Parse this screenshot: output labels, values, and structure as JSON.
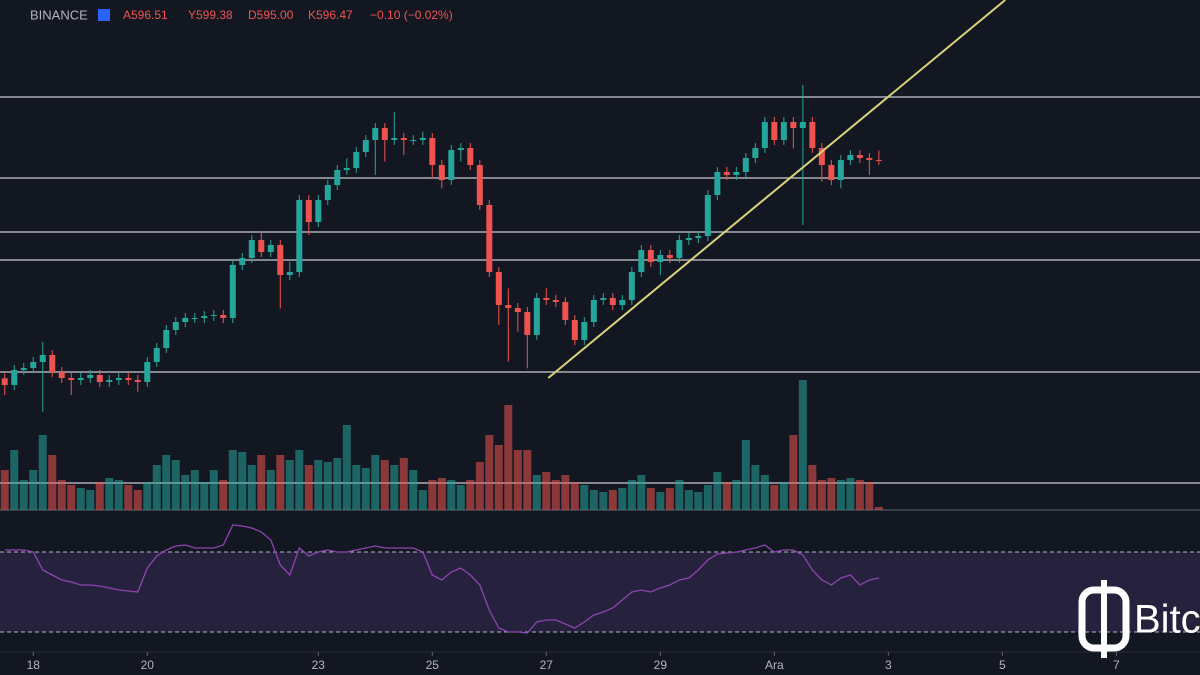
{
  "chart_data": {
    "type": "candlestick",
    "header": {
      "exchange": "BINANCE",
      "open": "A596.51",
      "high": "Y599.38",
      "low": "D595.00",
      "close": "K596.47",
      "change": "−0.10 (−0.02%)"
    },
    "open": [
      531,
      529,
      533.5,
      534.1,
      535.9,
      538,
      532.9,
      531.1,
      530.5,
      531.1,
      532,
      529.9,
      530.5,
      531.1,
      530.5,
      529.9,
      535.9,
      540.1,
      545.5,
      547.9,
      549.1,
      549.1,
      549.7,
      550,
      549.1,
      565,
      567.1,
      572.5,
      568.9,
      571,
      562,
      562.9,
      584.5,
      577.9,
      584.5,
      589,
      593.5,
      594.1,
      598.9,
      602.5,
      606.1,
      602.5,
      603.1,
      602.5,
      602.5,
      603.1,
      595,
      590.5,
      599.5,
      600.1,
      595,
      583,
      562.9,
      553,
      552.1,
      550.9,
      544,
      555.1,
      554.5,
      553.9,
      548.5,
      542.5,
      547.9,
      554.5,
      555.1,
      553,
      554.5,
      562.9,
      569.5,
      565.9,
      568,
      567.1,
      572.5,
      573.1,
      573.7,
      586,
      592.9,
      592,
      592.9,
      597.1,
      600.1,
      607.9,
      602.5,
      607.9,
      606.1,
      607.9,
      600.1,
      595,
      590.5,
      596.5,
      598,
      597.1,
      596.51
    ],
    "high": [
      532.5,
      535,
      535.6,
      537.4,
      541.9,
      539.5,
      534.4,
      532.6,
      532.6,
      533.5,
      533.5,
      532,
      532.6,
      532.6,
      532,
      537.4,
      541.6,
      547,
      549.4,
      550.6,
      550.6,
      551.2,
      551.5,
      551.5,
      566.5,
      568.6,
      574,
      575,
      572.5,
      572.5,
      566,
      586,
      586,
      586,
      590.5,
      595,
      597,
      600.4,
      604,
      607.6,
      607.6,
      611,
      604.6,
      604,
      605,
      604.6,
      596.5,
      601,
      601.6,
      601.6,
      596.5,
      584.5,
      564.4,
      558,
      553.6,
      552.4,
      556.6,
      558,
      556,
      555.4,
      550,
      549.4,
      556,
      556.6,
      556.6,
      556,
      564.4,
      571,
      571,
      569.5,
      569.5,
      574,
      574.6,
      575.2,
      587.5,
      594.4,
      594.4,
      594.4,
      598.6,
      601.6,
      609.4,
      609.4,
      609.4,
      609.4,
      619,
      609.4,
      601.6,
      596.5,
      598,
      599.5,
      599.5,
      598.6,
      599.38
    ],
    "low": [
      526,
      527.5,
      532,
      532.6,
      521,
      531.4,
      529.6,
      526,
      529,
      529.6,
      528.4,
      528.4,
      529,
      529,
      527,
      528.4,
      534.4,
      538.6,
      544,
      546.4,
      547.6,
      547.6,
      548.2,
      547.6,
      547.6,
      563.5,
      565.6,
      567.4,
      567.4,
      552,
      560.5,
      561.4,
      574,
      576.4,
      583,
      587.5,
      592,
      592.6,
      597.4,
      592,
      596,
      601,
      598,
      601,
      601,
      591,
      588,
      589,
      596,
      593.5,
      581.5,
      561.4,
      547,
      536,
      545,
      534,
      542.5,
      553,
      552.4,
      547,
      541,
      541,
      546.4,
      553,
      551.5,
      551.5,
      553,
      561.4,
      564.4,
      562,
      565.6,
      565.6,
      571,
      571.6,
      572.2,
      584.5,
      590.5,
      590.5,
      591.4,
      595.6,
      598.6,
      601,
      601,
      600,
      577,
      598.6,
      590,
      589,
      588,
      595,
      595.6,
      592,
      595
    ],
    "close": [
      529,
      533.5,
      534.1,
      535.9,
      538,
      532.9,
      531.1,
      530.5,
      531.1,
      532,
      529.9,
      530.5,
      531.1,
      530.5,
      529.9,
      535.9,
      540.1,
      545.5,
      547.9,
      549.1,
      549.1,
      549.7,
      550,
      549.1,
      565,
      567.1,
      572.5,
      568.9,
      571,
      562,
      562.9,
      584.5,
      577.9,
      584.5,
      589,
      593.5,
      594.1,
      598.9,
      602.5,
      606.1,
      602.5,
      603.1,
      602.5,
      602.5,
      603.1,
      595,
      590.5,
      599.5,
      600.1,
      595,
      583,
      562.9,
      553,
      552.1,
      550.9,
      544,
      555.1,
      554.5,
      553.9,
      548.5,
      542.5,
      547.9,
      554.5,
      555.1,
      553,
      554.5,
      562.9,
      569.5,
      565.9,
      568,
      567.1,
      572.5,
      573.1,
      573.7,
      586,
      592.9,
      592,
      592.9,
      597.1,
      600.1,
      607.9,
      602.5,
      607.9,
      606.1,
      607.9,
      600.1,
      595,
      590.5,
      596.5,
      598,
      597.1,
      596.51,
      596.47
    ],
    "volume": [
      40,
      60,
      30,
      40,
      75,
      55,
      30,
      25,
      22,
      20,
      28,
      32,
      30,
      25,
      20,
      28,
      45,
      55,
      50,
      35,
      40,
      28,
      40,
      30,
      60,
      58,
      45,
      55,
      40,
      55,
      50,
      60,
      45,
      50,
      48,
      52,
      85,
      45,
      42,
      55,
      50,
      45,
      52,
      40,
      20,
      30,
      32,
      30,
      25,
      30,
      48,
      75,
      65,
      105,
      60,
      60,
      35,
      38,
      30,
      35,
      28,
      25,
      20,
      18,
      20,
      22,
      30,
      35,
      22,
      18,
      22,
      30,
      20,
      18,
      25,
      38,
      28,
      30,
      70,
      45,
      35,
      25,
      28,
      75,
      130,
      45,
      30,
      32,
      30,
      32,
      30,
      28,
      3
    ],
    "up_color": "#26a69a",
    "down_color": "#ef5350",
    "xlim": [
      -0.5,
      125.8
    ],
    "ylim": [
      518.5,
      644.5
    ],
    "vlim": [
      0,
      140
    ],
    "xticks": [
      {
        "value": 3,
        "label": "18"
      },
      {
        "value": 15,
        "label": "20"
      },
      {
        "value": 33,
        "label": "23"
      },
      {
        "value": 45,
        "label": "25"
      },
      {
        "value": 57,
        "label": "27"
      },
      {
        "value": 69,
        "label": "29"
      },
      {
        "value": 81,
        "label": "Ara"
      },
      {
        "value": 93,
        "label": "3"
      },
      {
        "value": 105,
        "label": "5"
      },
      {
        "value": 117,
        "label": "7"
      }
    ],
    "levels": [
      615.4,
      591.1,
      574.9,
      566.5,
      532.9,
      499.6
    ],
    "trendline": {
      "x": [
        57.2,
        105.3
      ],
      "y": [
        531.1,
        644.5
      ],
      "color": "#d8d47a"
    },
    "rsi": {
      "values": [
        71,
        71,
        71,
        70,
        61,
        58.5,
        56,
        55,
        53.5,
        53.5,
        53,
        52,
        51,
        50.5,
        50,
        62,
        68,
        71,
        73,
        73.5,
        72,
        72,
        72,
        73.5,
        83.5,
        83,
        82,
        80,
        76,
        63.5,
        58.5,
        72,
        68,
        70,
        71,
        70,
        70,
        71,
        72,
        73,
        72,
        72,
        72,
        72,
        70,
        58.5,
        56,
        60,
        62,
        58.5,
        53.5,
        41,
        32,
        30,
        30,
        29.5,
        35,
        36,
        36,
        34,
        32,
        35,
        38.5,
        40,
        42,
        46,
        50,
        51,
        50,
        52,
        53.5,
        56,
        57,
        61,
        66,
        69,
        69.5,
        70,
        71,
        72,
        73.5,
        70,
        71,
        71,
        68.5,
        61,
        56,
        53.5,
        57,
        58.5,
        53.5,
        56,
        57
      ],
      "ylim": [
        0,
        100
      ],
      "levels": [
        70,
        30
      ],
      "color": "#8e44ad"
    },
    "watermark": "Bitc"
  }
}
